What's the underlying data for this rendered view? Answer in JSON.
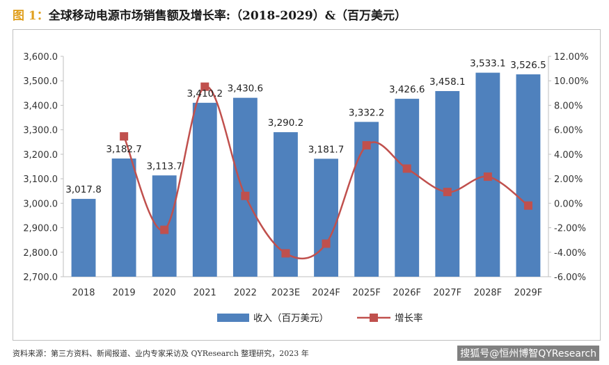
{
  "title": {
    "figure_label": "图 1：",
    "text": "全球移动电源市场销售额及增长率:（2018-2029）&（百万美元）"
  },
  "footer": {
    "source": "资料来源：第三方资料、新闻报道、业内专家采访及 QYResearch 整理研究，2023 年",
    "credit": "搜狐号@恒州博智QYResearch"
  },
  "colors": {
    "bar": "#4f81bd",
    "line": "#c0504d",
    "title_accent": "#e0a020"
  },
  "chart_data": {
    "type": "bar",
    "categories": [
      "2018",
      "2019",
      "2020",
      "2021",
      "2022",
      "2023E",
      "2024F",
      "2025F",
      "2026F",
      "2027F",
      "2028F",
      "2029F"
    ],
    "series": [
      {
        "name": "收入（百万美元）",
        "type": "bar",
        "axis": "left",
        "values": [
          3017.8,
          3182.7,
          3113.7,
          3410.2,
          3430.6,
          3290.2,
          3181.7,
          3332.2,
          3426.6,
          3458.1,
          3533.1,
          3526.5
        ],
        "labels": [
          "3,017.8",
          "3,182.7",
          "3,113.7",
          "3,410.2",
          "3,430.6",
          "3,290.2",
          "3,181.7",
          "3,332.2",
          "3,426.6",
          "3,458.1",
          "3,533.1",
          "3,526.5"
        ]
      },
      {
        "name": "增长率",
        "type": "line",
        "axis": "right",
        "values": [
          null,
          5.46,
          -2.17,
          9.52,
          0.6,
          -4.09,
          -3.3,
          4.73,
          2.83,
          0.92,
          2.17,
          -0.19
        ]
      }
    ],
    "y_left": {
      "ylim": [
        2700,
        3600
      ],
      "ticks": [
        2700,
        2800,
        2900,
        3000,
        3100,
        3200,
        3300,
        3400,
        3500,
        3600
      ],
      "tick_labels": [
        "2,700.0",
        "2,800.0",
        "2,900.0",
        "3,000.0",
        "3,100.0",
        "3,200.0",
        "3,300.0",
        "3,400.0",
        "3,500.0",
        "3,600.0"
      ]
    },
    "y_right": {
      "ylim": [
        -6,
        12
      ],
      "ticks": [
        -6,
        -4,
        -2,
        0,
        2,
        4,
        6,
        8,
        10,
        12
      ],
      "tick_labels": [
        "-6.00%",
        "-4.00%",
        "-2.00%",
        "0.00%",
        "2.00%",
        "4.00%",
        "6.00%",
        "8.00%",
        "10.00%",
        "12.00%"
      ]
    },
    "legend": {
      "position": "bottom",
      "items": [
        "收入（百万美元）",
        "增长率"
      ]
    },
    "grid": false
  }
}
